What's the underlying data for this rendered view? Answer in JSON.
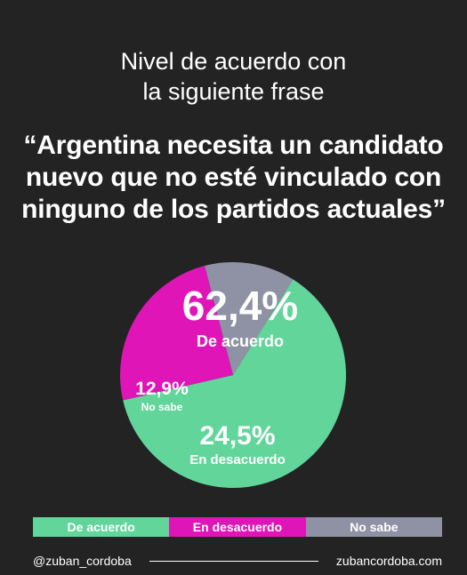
{
  "colors": {
    "background": "#232323",
    "acuerdo": "#62d59a",
    "desacuerdo": "#df15b8",
    "no_sabe": "#8f92a4"
  },
  "header": {
    "subtitle_line1": "Nivel de acuerdo con",
    "subtitle_line2": "la siguiente frase",
    "quote_line1": "“Argentina necesita un candidato",
    "quote_line2": "nuevo que no esté vinculado con",
    "quote_line3": "ninguno de los partidos actuales”"
  },
  "chart_data": {
    "type": "pie",
    "unit": "%",
    "slices": [
      {
        "category": "De acuerdo",
        "value": 62.4,
        "label": "62,4%",
        "color": "#62d59a"
      },
      {
        "category": "En desacuerdo",
        "value": 24.5,
        "label": "24,5%",
        "color": "#df15b8"
      },
      {
        "category": "No sabe",
        "value": 12.9,
        "label": "12,9%",
        "color": "#8f92a4"
      }
    ],
    "legend": [
      "De acuerdo",
      "En desacuerdo",
      "No sabe"
    ],
    "legend_placement": "bottom"
  },
  "footer": {
    "handle": "@zuban_cordoba",
    "website": "zubancordoba.com"
  }
}
